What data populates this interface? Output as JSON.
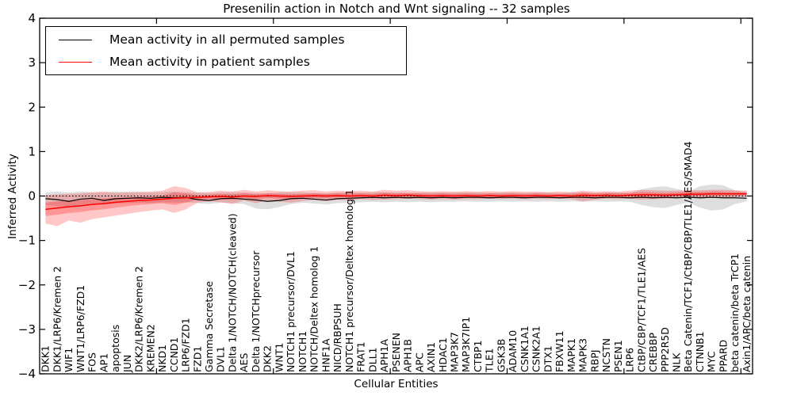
{
  "title": "Presenilin action in Notch and Wnt signaling -- 32 samples",
  "legend": [
    {
      "label": "Mean activity in all permuted samples",
      "color": "#000000"
    },
    {
      "label": "Mean activity in patient samples",
      "color": "#ff0000"
    }
  ],
  "chart_data": {
    "type": "line",
    "title": "Presenilin action in Notch and Wnt signaling -- 32 samples",
    "xlabel": "Cellular Entities",
    "ylabel": "Inferred Activity",
    "ylim": [
      -4,
      4
    ],
    "yticks": [
      4,
      3,
      2,
      1,
      0,
      -1,
      -2,
      -3,
      -4
    ],
    "ytick_labels": [
      "4",
      "3",
      "2",
      "1",
      "0",
      "−1",
      "−2",
      "−3",
      "−4"
    ],
    "xticks_unlabeled": [
      10,
      20,
      30,
      40,
      50,
      60
    ],
    "grid": false,
    "legend_position": "upper left",
    "baseline": 0,
    "categories": [
      "DKK1",
      "DKK1/LRP6/Kremen 2",
      "WIF1",
      "WNT1/LRP6/FZD1",
      "FOS",
      "AP1",
      "apoptosis",
      "JUN",
      "DKK2/LRP6/Kremen 2",
      "KREMEN2",
      "NKD1",
      "CCND1",
      "LRP6/FZD1",
      "FZD1",
      "Gamma Secretase",
      "DVL1",
      "Delta 1/NOTCH/NOTCH(cleaved)",
      "AES",
      "Delta 1/NOTCHprecursor",
      "DKK2",
      "WNT1",
      "NOTCH1 precursor/DVL1",
      "NOTCH1",
      "NOTCH/Deltex homolog 1",
      "HNF1A",
      "NICD/RBPSUH",
      "NOTCH1 precursor/Deltex homolog 1",
      "FRAT1",
      "DLL1",
      "APH1A",
      "PSENEN",
      "APH1B",
      "APC",
      "AXIN1",
      "HDAC1",
      "MAP3K7",
      "MAP3K7IP1",
      "CTBP1",
      "TLE1",
      "GSK3B",
      "ADAM10",
      "CSNK1A1",
      "CSNK2A1",
      "DTX1",
      "FBXW11",
      "MAPK1",
      "MAPK3",
      "RBPJ",
      "NCSTN",
      "PSEN1",
      "LRP6",
      "CtBP/CBP/TCF1/TLE1/AES",
      "CREBBP",
      "PPP2R5D",
      "NLK",
      "Beta Catenin/TCF1/CtBP/CBP/TLE1/AES/SMAD4",
      "CTNNB1",
      "MYC",
      "PPARD",
      "beta catenin/beta TrCP1",
      "Axin1/APC/beta catenin"
    ],
    "series": [
      {
        "name": "Mean activity in all permuted samples",
        "color": "#000000",
        "style": "solid",
        "width": 1.2,
        "values": [
          -0.06,
          -0.08,
          -0.12,
          -0.07,
          -0.05,
          -0.1,
          -0.06,
          -0.05,
          -0.04,
          -0.05,
          -0.03,
          -0.04,
          -0.03,
          -0.08,
          -0.1,
          -0.06,
          -0.05,
          -0.07,
          -0.09,
          -0.12,
          -0.1,
          -0.06,
          -0.05,
          -0.07,
          -0.09,
          -0.06,
          -0.05,
          -0.04,
          -0.03,
          -0.04,
          -0.03,
          -0.04,
          -0.03,
          -0.04,
          -0.03,
          -0.04,
          -0.03,
          -0.03,
          -0.04,
          -0.03,
          -0.03,
          -0.04,
          -0.03,
          -0.03,
          -0.04,
          -0.03,
          -0.03,
          -0.04,
          -0.03,
          -0.03,
          -0.04,
          -0.03,
          -0.04,
          -0.03,
          -0.04,
          -0.03,
          -0.04,
          -0.03,
          -0.04,
          -0.04,
          -0.05
        ]
      },
      {
        "name": "Mean activity in patient samples",
        "color": "#ff0000",
        "style": "solid",
        "width": 1.5,
        "values": [
          -0.3,
          -0.27,
          -0.24,
          -0.22,
          -0.19,
          -0.17,
          -0.14,
          -0.12,
          -0.1,
          -0.09,
          -0.07,
          -0.05,
          -0.04,
          -0.03,
          -0.02,
          -0.01,
          -0.02,
          0.0,
          -0.01,
          0.01,
          0.0,
          -0.01,
          0.0,
          0.01,
          0.0,
          0.01,
          0.0,
          0.01,
          0.0,
          0.02,
          0.01,
          0.02,
          0.01,
          0.0,
          0.01,
          0.0,
          0.01,
          0.0,
          0.01,
          0.0,
          0.01,
          0.0,
          0.01,
          0.0,
          0.01,
          0.0,
          0.02,
          0.01,
          0.02,
          0.01,
          0.02,
          0.03,
          0.03,
          0.02,
          0.03,
          0.04,
          0.04,
          0.05,
          0.05,
          0.05,
          0.05
        ]
      },
      {
        "name": "zero reference",
        "color": "#000000",
        "style": "dotted",
        "width": 1.2,
        "constant": 0
      }
    ],
    "bands": [
      {
        "name": "permuted samples range",
        "color": "rgba(0,0,0,0.13)",
        "lo": [
          -0.2,
          -0.22,
          -0.25,
          -0.2,
          -0.18,
          -0.2,
          -0.17,
          -0.16,
          -0.15,
          -0.16,
          -0.14,
          -0.15,
          -0.14,
          -0.16,
          -0.18,
          -0.15,
          -0.16,
          -0.18,
          -0.28,
          -0.3,
          -0.25,
          -0.18,
          -0.15,
          -0.17,
          -0.19,
          -0.16,
          -0.15,
          -0.14,
          -0.13,
          -0.14,
          -0.13,
          -0.14,
          -0.13,
          -0.14,
          -0.13,
          -0.13,
          -0.12,
          -0.13,
          -0.13,
          -0.12,
          -0.13,
          -0.12,
          -0.13,
          -0.12,
          -0.13,
          -0.12,
          -0.13,
          -0.12,
          -0.13,
          -0.12,
          -0.13,
          -0.2,
          -0.25,
          -0.27,
          -0.2,
          -0.14,
          -0.26,
          -0.33,
          -0.3,
          -0.18,
          -0.12
        ],
        "hi": [
          0.08,
          0.1,
          0.08,
          0.1,
          0.09,
          0.08,
          0.1,
          0.09,
          0.1,
          0.08,
          0.09,
          0.1,
          0.09,
          0.08,
          0.07,
          0.08,
          0.09,
          0.08,
          0.07,
          0.06,
          0.08,
          0.09,
          0.08,
          0.07,
          0.06,
          0.08,
          0.09,
          0.08,
          0.09,
          0.08,
          0.08,
          0.07,
          0.08,
          0.08,
          0.08,
          0.08,
          0.08,
          0.08,
          0.07,
          0.08,
          0.08,
          0.07,
          0.08,
          0.08,
          0.07,
          0.08,
          0.08,
          0.07,
          0.08,
          0.08,
          0.07,
          0.15,
          0.2,
          0.22,
          0.16,
          0.1,
          0.22,
          0.26,
          0.24,
          0.13,
          0.08
        ]
      },
      {
        "name": "patient samples outer range",
        "color": "rgba(255,0,0,0.22)",
        "lo": [
          -0.62,
          -0.68,
          -0.55,
          -0.6,
          -0.52,
          -0.48,
          -0.44,
          -0.4,
          -0.36,
          -0.33,
          -0.3,
          -0.38,
          -0.3,
          -0.15,
          -0.12,
          -0.14,
          -0.18,
          -0.1,
          -0.16,
          -0.1,
          -0.13,
          -0.15,
          -0.11,
          -0.09,
          -0.12,
          -0.08,
          -0.1,
          -0.07,
          -0.09,
          -0.08,
          -0.07,
          -0.06,
          -0.07,
          -0.08,
          -0.07,
          -0.08,
          -0.07,
          -0.07,
          -0.06,
          -0.07,
          -0.06,
          -0.07,
          -0.06,
          -0.07,
          -0.06,
          -0.07,
          -0.12,
          -0.08,
          -0.06,
          -0.07,
          -0.06,
          -0.08,
          -0.07,
          -0.06,
          -0.05,
          -0.04,
          -0.04,
          -0.03,
          -0.03,
          -0.02,
          -0.02
        ],
        "hi": [
          0.02,
          0.04,
          0.05,
          0.06,
          0.08,
          0.1,
          0.07,
          0.09,
          0.08,
          0.1,
          0.12,
          0.22,
          0.18,
          0.08,
          0.09,
          0.12,
          0.1,
          0.14,
          0.1,
          0.13,
          0.11,
          0.1,
          0.12,
          0.13,
          0.1,
          0.12,
          0.11,
          0.12,
          0.1,
          0.14,
          0.12,
          0.13,
          0.11,
          0.1,
          0.11,
          0.1,
          0.11,
          0.1,
          0.11,
          0.1,
          0.11,
          0.1,
          0.1,
          0.09,
          0.1,
          0.09,
          0.12,
          0.1,
          0.11,
          0.1,
          0.12,
          0.14,
          0.13,
          0.12,
          0.12,
          0.13,
          0.13,
          0.14,
          0.14,
          0.13,
          0.12
        ]
      },
      {
        "name": "patient samples inner range",
        "color": "rgba(255,0,0,0.25)",
        "lo": [
          -0.45,
          -0.42,
          -0.38,
          -0.36,
          -0.32,
          -0.3,
          -0.26,
          -0.23,
          -0.2,
          -0.18,
          -0.16,
          -0.2,
          -0.15,
          -0.08,
          -0.06,
          -0.07,
          -0.09,
          -0.05,
          -0.08,
          -0.04,
          -0.06,
          -0.07,
          -0.05,
          -0.04,
          -0.05,
          -0.03,
          -0.04,
          -0.03,
          -0.04,
          -0.02,
          -0.03,
          -0.02,
          -0.03,
          -0.04,
          -0.03,
          -0.03,
          -0.03,
          -0.03,
          -0.02,
          -0.03,
          -0.02,
          -0.03,
          -0.02,
          -0.03,
          -0.02,
          -0.03,
          -0.05,
          -0.03,
          -0.02,
          -0.03,
          -0.02,
          -0.03,
          -0.02,
          -0.02,
          -0.01,
          0.0,
          0.0,
          0.01,
          0.01,
          0.01,
          0.02
        ],
        "hi": [
          -0.15,
          -0.12,
          -0.1,
          -0.09,
          -0.07,
          -0.05,
          -0.04,
          -0.03,
          -0.02,
          -0.01,
          0.01,
          0.08,
          0.06,
          0.02,
          0.03,
          0.05,
          0.04,
          0.06,
          0.04,
          0.06,
          0.05,
          0.04,
          0.05,
          0.06,
          0.05,
          0.06,
          0.05,
          0.06,
          0.05,
          0.08,
          0.06,
          0.07,
          0.06,
          0.05,
          0.06,
          0.05,
          0.06,
          0.05,
          0.06,
          0.05,
          0.06,
          0.05,
          0.06,
          0.05,
          0.05,
          0.05,
          0.08,
          0.06,
          0.07,
          0.06,
          0.07,
          0.09,
          0.08,
          0.07,
          0.08,
          0.09,
          0.09,
          0.1,
          0.1,
          0.09,
          0.09
        ]
      }
    ]
  }
}
